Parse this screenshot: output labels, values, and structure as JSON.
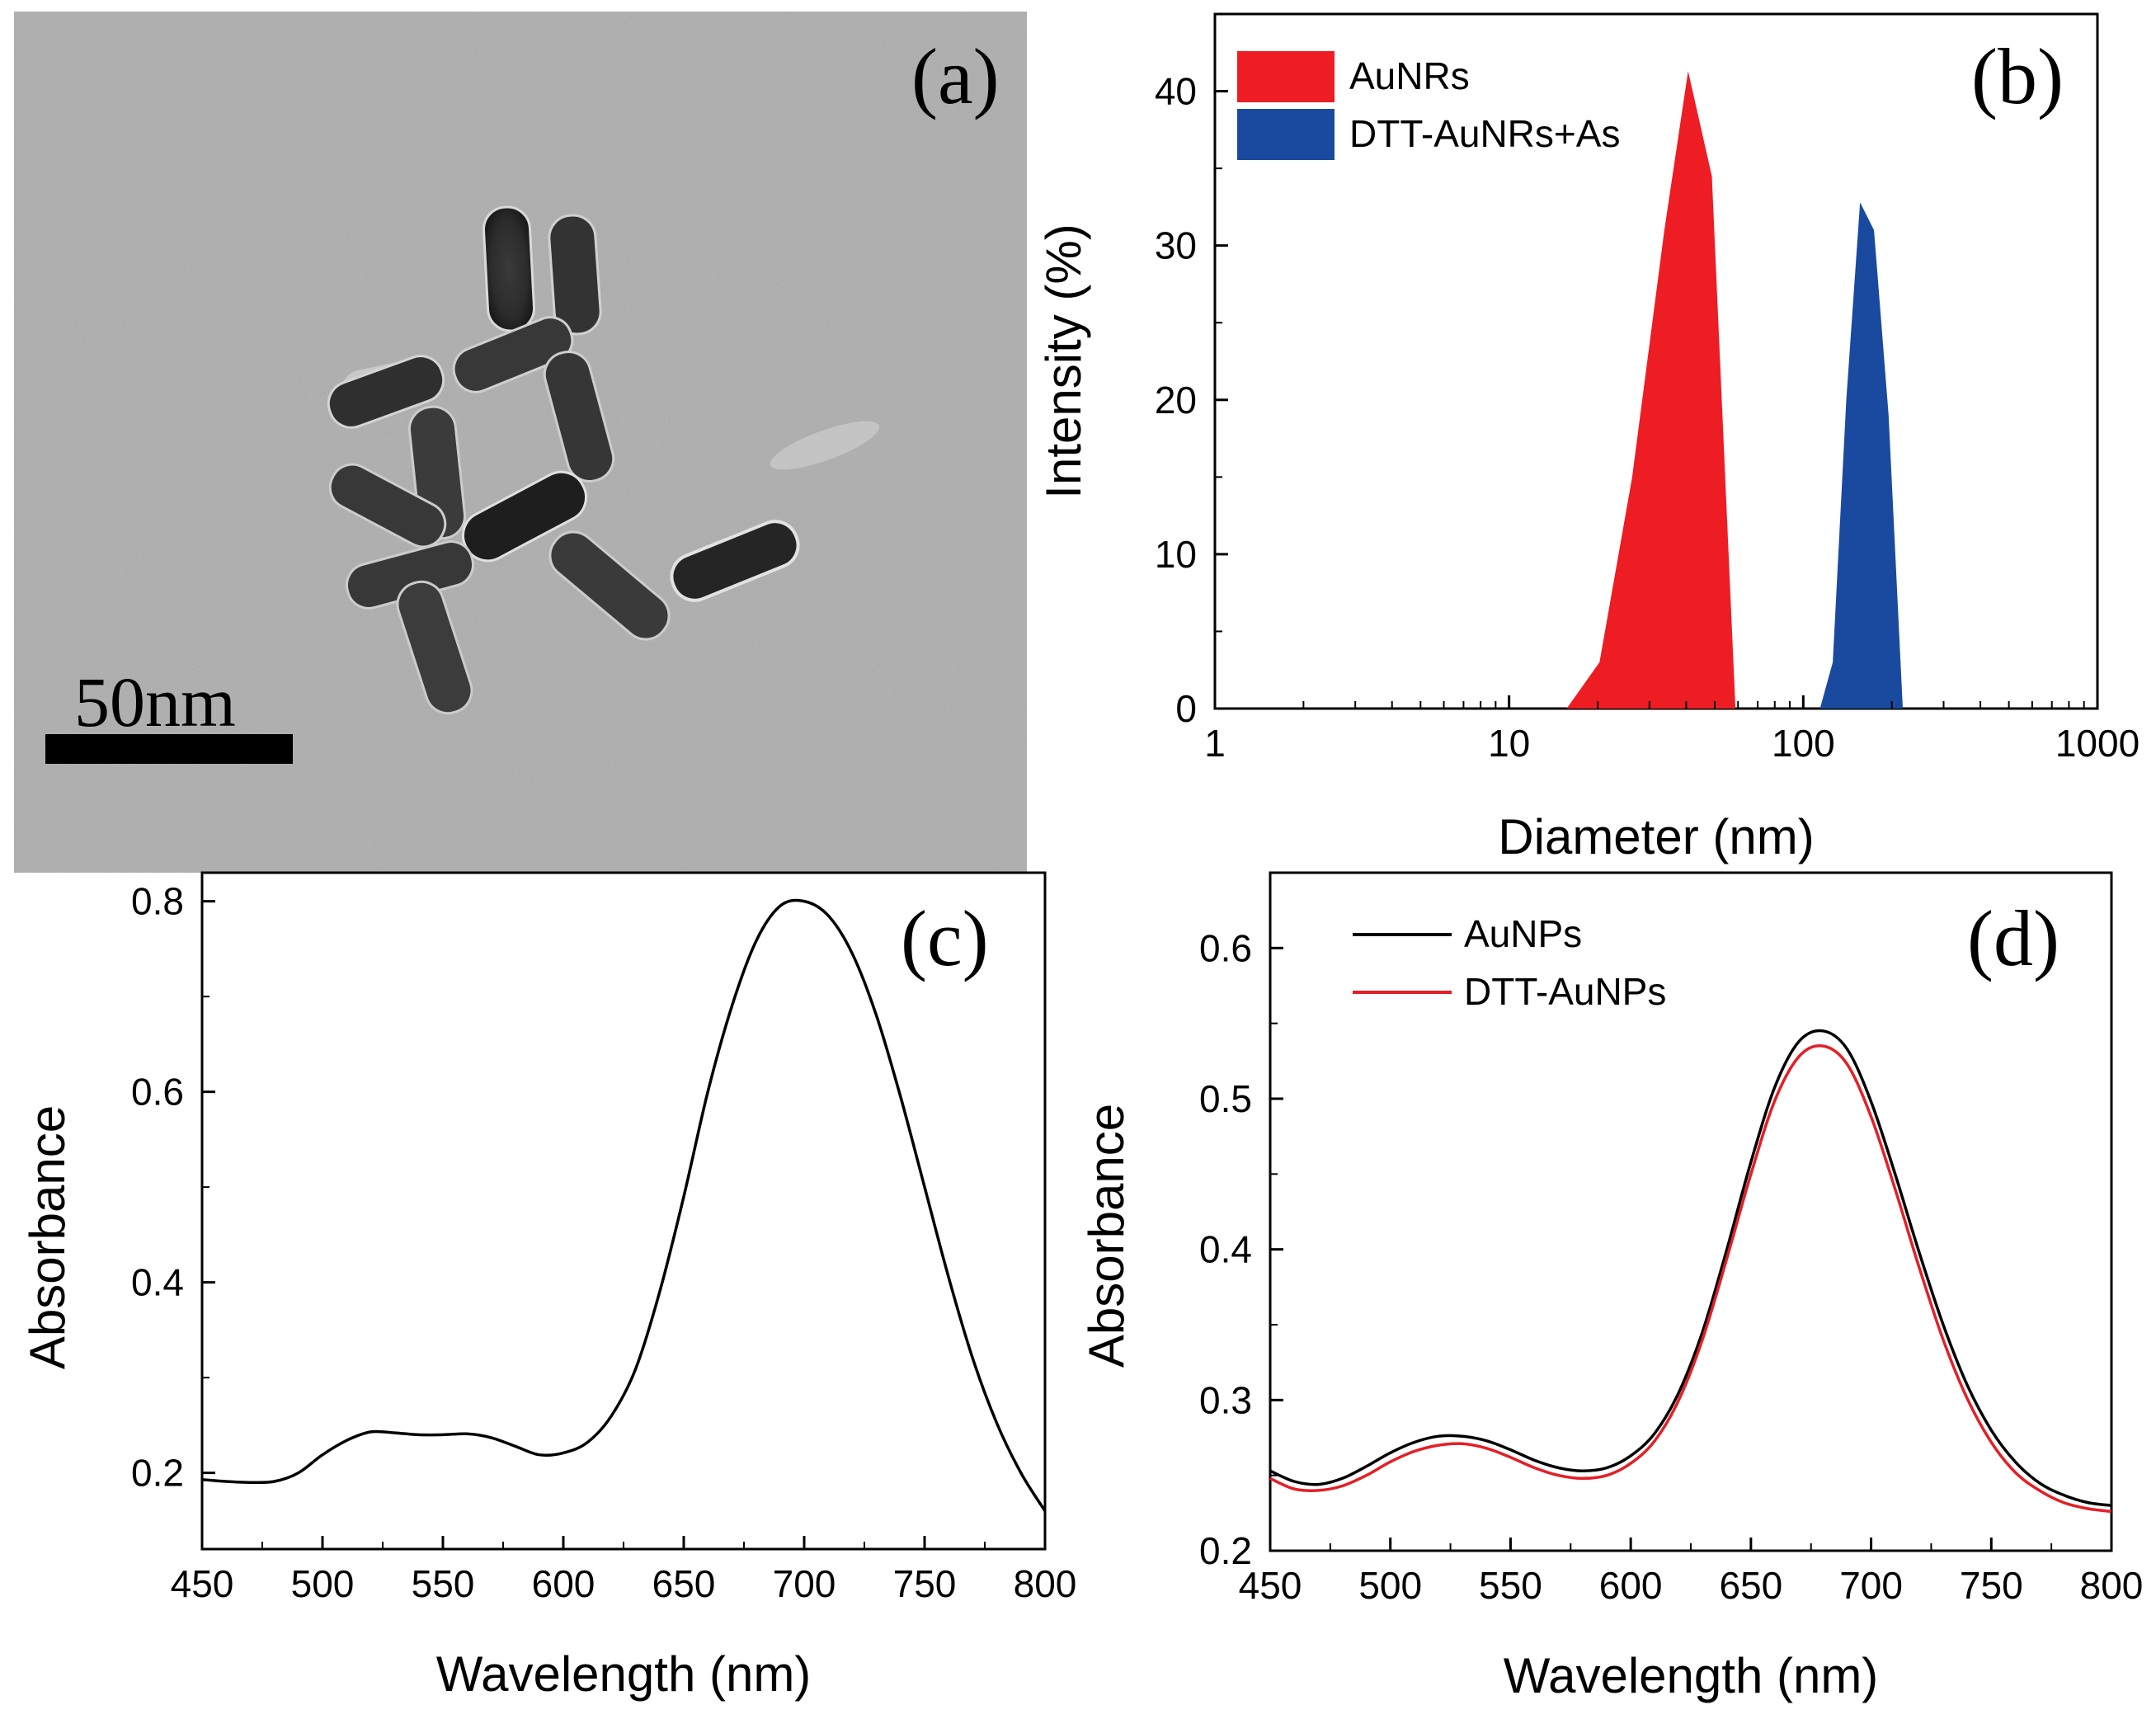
{
  "figure": {
    "panels": {
      "a": {
        "label": "(a)",
        "scale_bar_label": "50nm",
        "description_type": "TEM micrograph"
      },
      "b": {
        "label": "(b)"
      },
      "c": {
        "label": "(c)"
      },
      "d": {
        "label": "(d)"
      }
    }
  },
  "colors": {
    "aunrs_fill": "#ee1c23",
    "dtt_fill": "#1a4aa0",
    "line_black": "#000000",
    "line_red": "#e41f26"
  },
  "chart_data": [
    {
      "panel": "b",
      "type": "area",
      "title": "",
      "xlabel": "Diameter (nm)",
      "ylabel": "Intensity (%)",
      "xscale": "log",
      "xlim": [
        1,
        1000
      ],
      "ylim": [
        0,
        45
      ],
      "xticks": [
        1,
        10,
        100,
        1000
      ],
      "xtick_labels": [
        "1",
        "10",
        "100",
        "1000"
      ],
      "yticks": [
        0,
        10,
        20,
        30,
        40
      ],
      "ytick_labels": [
        "0",
        "10",
        "20",
        "30",
        "40"
      ],
      "legend_position": "top-left",
      "series": [
        {
          "name": "AuNRs",
          "color": "#ee1c23",
          "x": [
            15.7,
            20.3,
            26.2,
            33.7,
            40.6,
            48.9,
            58.8
          ],
          "y": [
            0,
            3.0,
            15.0,
            31.0,
            41.3,
            34.5,
            0
          ]
        },
        {
          "name": "DTT-AuNRs+As",
          "color": "#1a4aa0",
          "x": [
            114,
            126,
            140,
            156,
            174,
            195,
            218
          ],
          "y": [
            0,
            3.0,
            20.0,
            32.8,
            31.0,
            19.0,
            0
          ]
        }
      ]
    },
    {
      "panel": "c",
      "type": "line",
      "title": "",
      "xlabel": "Wavelength (nm)",
      "ylabel": "Absorbance",
      "xlim": [
        450,
        800
      ],
      "ylim": [
        0.12,
        0.83
      ],
      "xticks": [
        450,
        500,
        550,
        600,
        650,
        700,
        750,
        800
      ],
      "xtick_labels": [
        "450",
        "500",
        "550",
        "600",
        "650",
        "700",
        "750",
        "800"
      ],
      "yticks": [
        0.2,
        0.4,
        0.6,
        0.8
      ],
      "ytick_labels": [
        "0.2",
        "0.4",
        "0.6",
        "0.8"
      ],
      "series": [
        {
          "name": "",
          "color": "#000000",
          "x": [
            450,
            460,
            470,
            480,
            490,
            500,
            510,
            520,
            530,
            540,
            550,
            560,
            570,
            580,
            590,
            600,
            610,
            620,
            630,
            640,
            650,
            660,
            670,
            680,
            690,
            700,
            710,
            720,
            730,
            740,
            750,
            760,
            770,
            780,
            790,
            800
          ],
          "y": [
            0.193,
            0.191,
            0.19,
            0.191,
            0.2,
            0.219,
            0.234,
            0.243,
            0.242,
            0.24,
            0.24,
            0.241,
            0.237,
            0.228,
            0.219,
            0.221,
            0.232,
            0.26,
            0.309,
            0.39,
            0.49,
            0.6,
            0.69,
            0.758,
            0.795,
            0.8,
            0.785,
            0.745,
            0.68,
            0.595,
            0.5,
            0.405,
            0.32,
            0.252,
            0.2,
            0.16
          ]
        }
      ]
    },
    {
      "panel": "d",
      "type": "line",
      "title": "",
      "xlabel": "Wavelength (nm)",
      "ylabel": "Absorbance",
      "xlim": [
        450,
        800
      ],
      "ylim": [
        0.2,
        0.65
      ],
      "xticks": [
        450,
        500,
        550,
        600,
        650,
        700,
        750,
        800
      ],
      "xtick_labels": [
        "450",
        "500",
        "550",
        "600",
        "650",
        "700",
        "750",
        "800"
      ],
      "yticks": [
        0.2,
        0.3,
        0.4,
        0.5,
        0.6
      ],
      "ytick_labels": [
        "0.2",
        "0.3",
        "0.4",
        "0.5",
        "0.6"
      ],
      "legend_position": "top-left",
      "series": [
        {
          "name": "AuNPs",
          "color": "#000000",
          "x": [
            450,
            460,
            470,
            480,
            490,
            500,
            510,
            520,
            530,
            540,
            550,
            560,
            570,
            580,
            590,
            600,
            610,
            620,
            630,
            640,
            650,
            660,
            670,
            680,
            690,
            700,
            710,
            720,
            730,
            740,
            750,
            760,
            770,
            780,
            790,
            800
          ],
          "y": [
            0.253,
            0.246,
            0.244,
            0.248,
            0.256,
            0.265,
            0.272,
            0.276,
            0.276,
            0.273,
            0.267,
            0.26,
            0.255,
            0.253,
            0.255,
            0.263,
            0.278,
            0.305,
            0.346,
            0.4,
            0.458,
            0.508,
            0.538,
            0.545,
            0.533,
            0.498,
            0.45,
            0.398,
            0.35,
            0.31,
            0.28,
            0.259,
            0.245,
            0.237,
            0.232,
            0.23
          ]
        },
        {
          "name": "DTT-AuNPs",
          "color": "#e41f26",
          "x": [
            450,
            460,
            470,
            480,
            490,
            500,
            510,
            520,
            530,
            540,
            550,
            560,
            570,
            580,
            590,
            600,
            610,
            620,
            630,
            640,
            650,
            660,
            670,
            680,
            690,
            700,
            710,
            720,
            730,
            740,
            750,
            760,
            770,
            780,
            790,
            800
          ],
          "y": [
            0.248,
            0.241,
            0.24,
            0.243,
            0.25,
            0.259,
            0.266,
            0.27,
            0.271,
            0.268,
            0.262,
            0.255,
            0.25,
            0.248,
            0.25,
            0.258,
            0.273,
            0.3,
            0.341,
            0.394,
            0.45,
            0.499,
            0.528,
            0.535,
            0.523,
            0.488,
            0.44,
            0.388,
            0.34,
            0.301,
            0.272,
            0.252,
            0.24,
            0.232,
            0.228,
            0.226
          ]
        }
      ]
    }
  ]
}
